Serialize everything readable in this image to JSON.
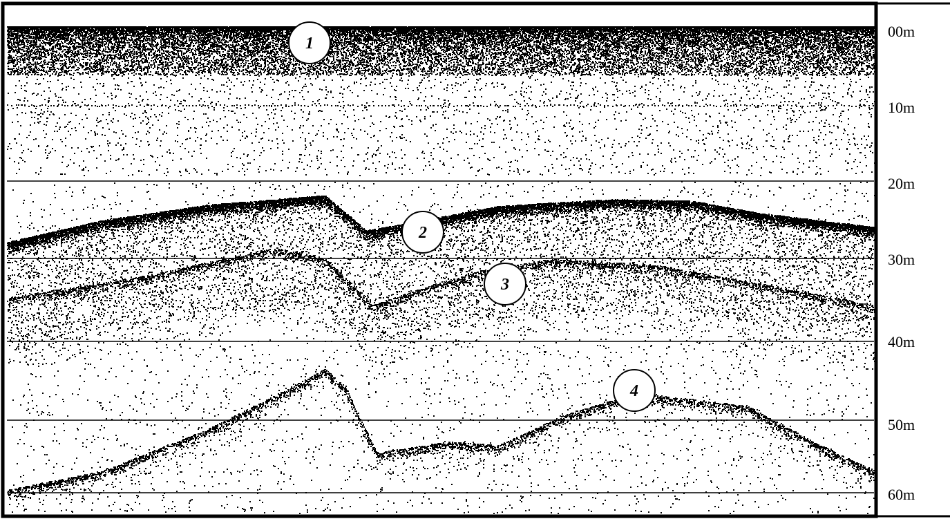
{
  "depth_scale": {
    "labels": [
      "00m",
      "10m",
      "20m",
      "30m",
      "40m",
      "50m",
      "60m"
    ]
  },
  "markers": [
    {
      "label": "1"
    },
    {
      "label": "2"
    },
    {
      "label": "3"
    },
    {
      "label": "4"
    }
  ]
}
